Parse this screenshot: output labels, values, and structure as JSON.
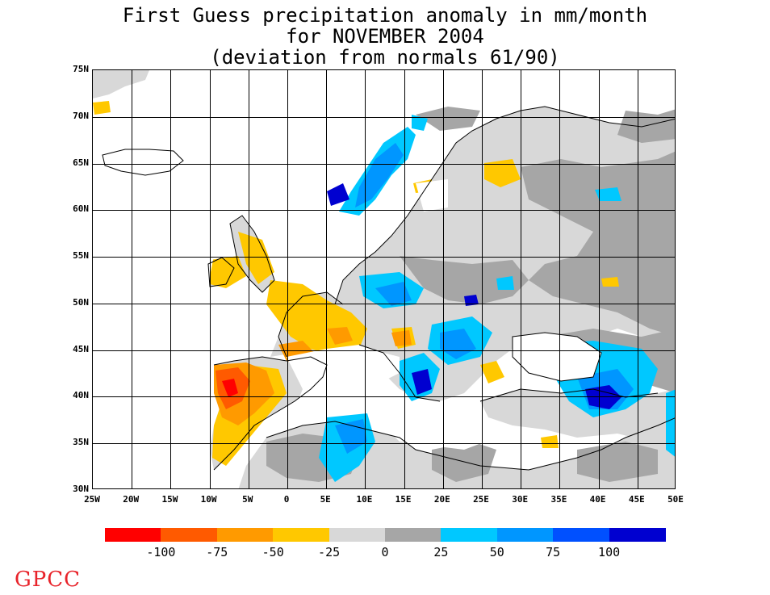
{
  "title": {
    "line1": "First Guess precipitation anomaly in mm/month",
    "line2": "for NOVEMBER 2004",
    "line3": "(deviation from normals 61/90)"
  },
  "map": {
    "lat_labels": [
      "75N",
      "70N",
      "65N",
      "60N",
      "55N",
      "50N",
      "45N",
      "40N",
      "35N",
      "30N"
    ],
    "lon_labels": [
      "25W",
      "20W",
      "15W",
      "10W",
      "5W",
      "0",
      "5E",
      "10E",
      "15E",
      "20E",
      "25E",
      "30E",
      "35E",
      "40E",
      "45E",
      "50E"
    ],
    "lat_range": [
      30,
      75
    ],
    "lon_range": [
      -25,
      50
    ],
    "grid": true
  },
  "legend": {
    "colors": [
      "#ff0000",
      "#ff5a00",
      "#ff9a00",
      "#ffc800",
      "#d8d8d8",
      "#a6a6a6",
      "#00c8ff",
      "#0096ff",
      "#0050ff",
      "#0000d0"
    ],
    "labels": [
      "-100",
      "-75",
      "-50",
      "-25",
      "0",
      "25",
      "50",
      "75",
      "100"
    ]
  },
  "logo": "GPCC"
}
